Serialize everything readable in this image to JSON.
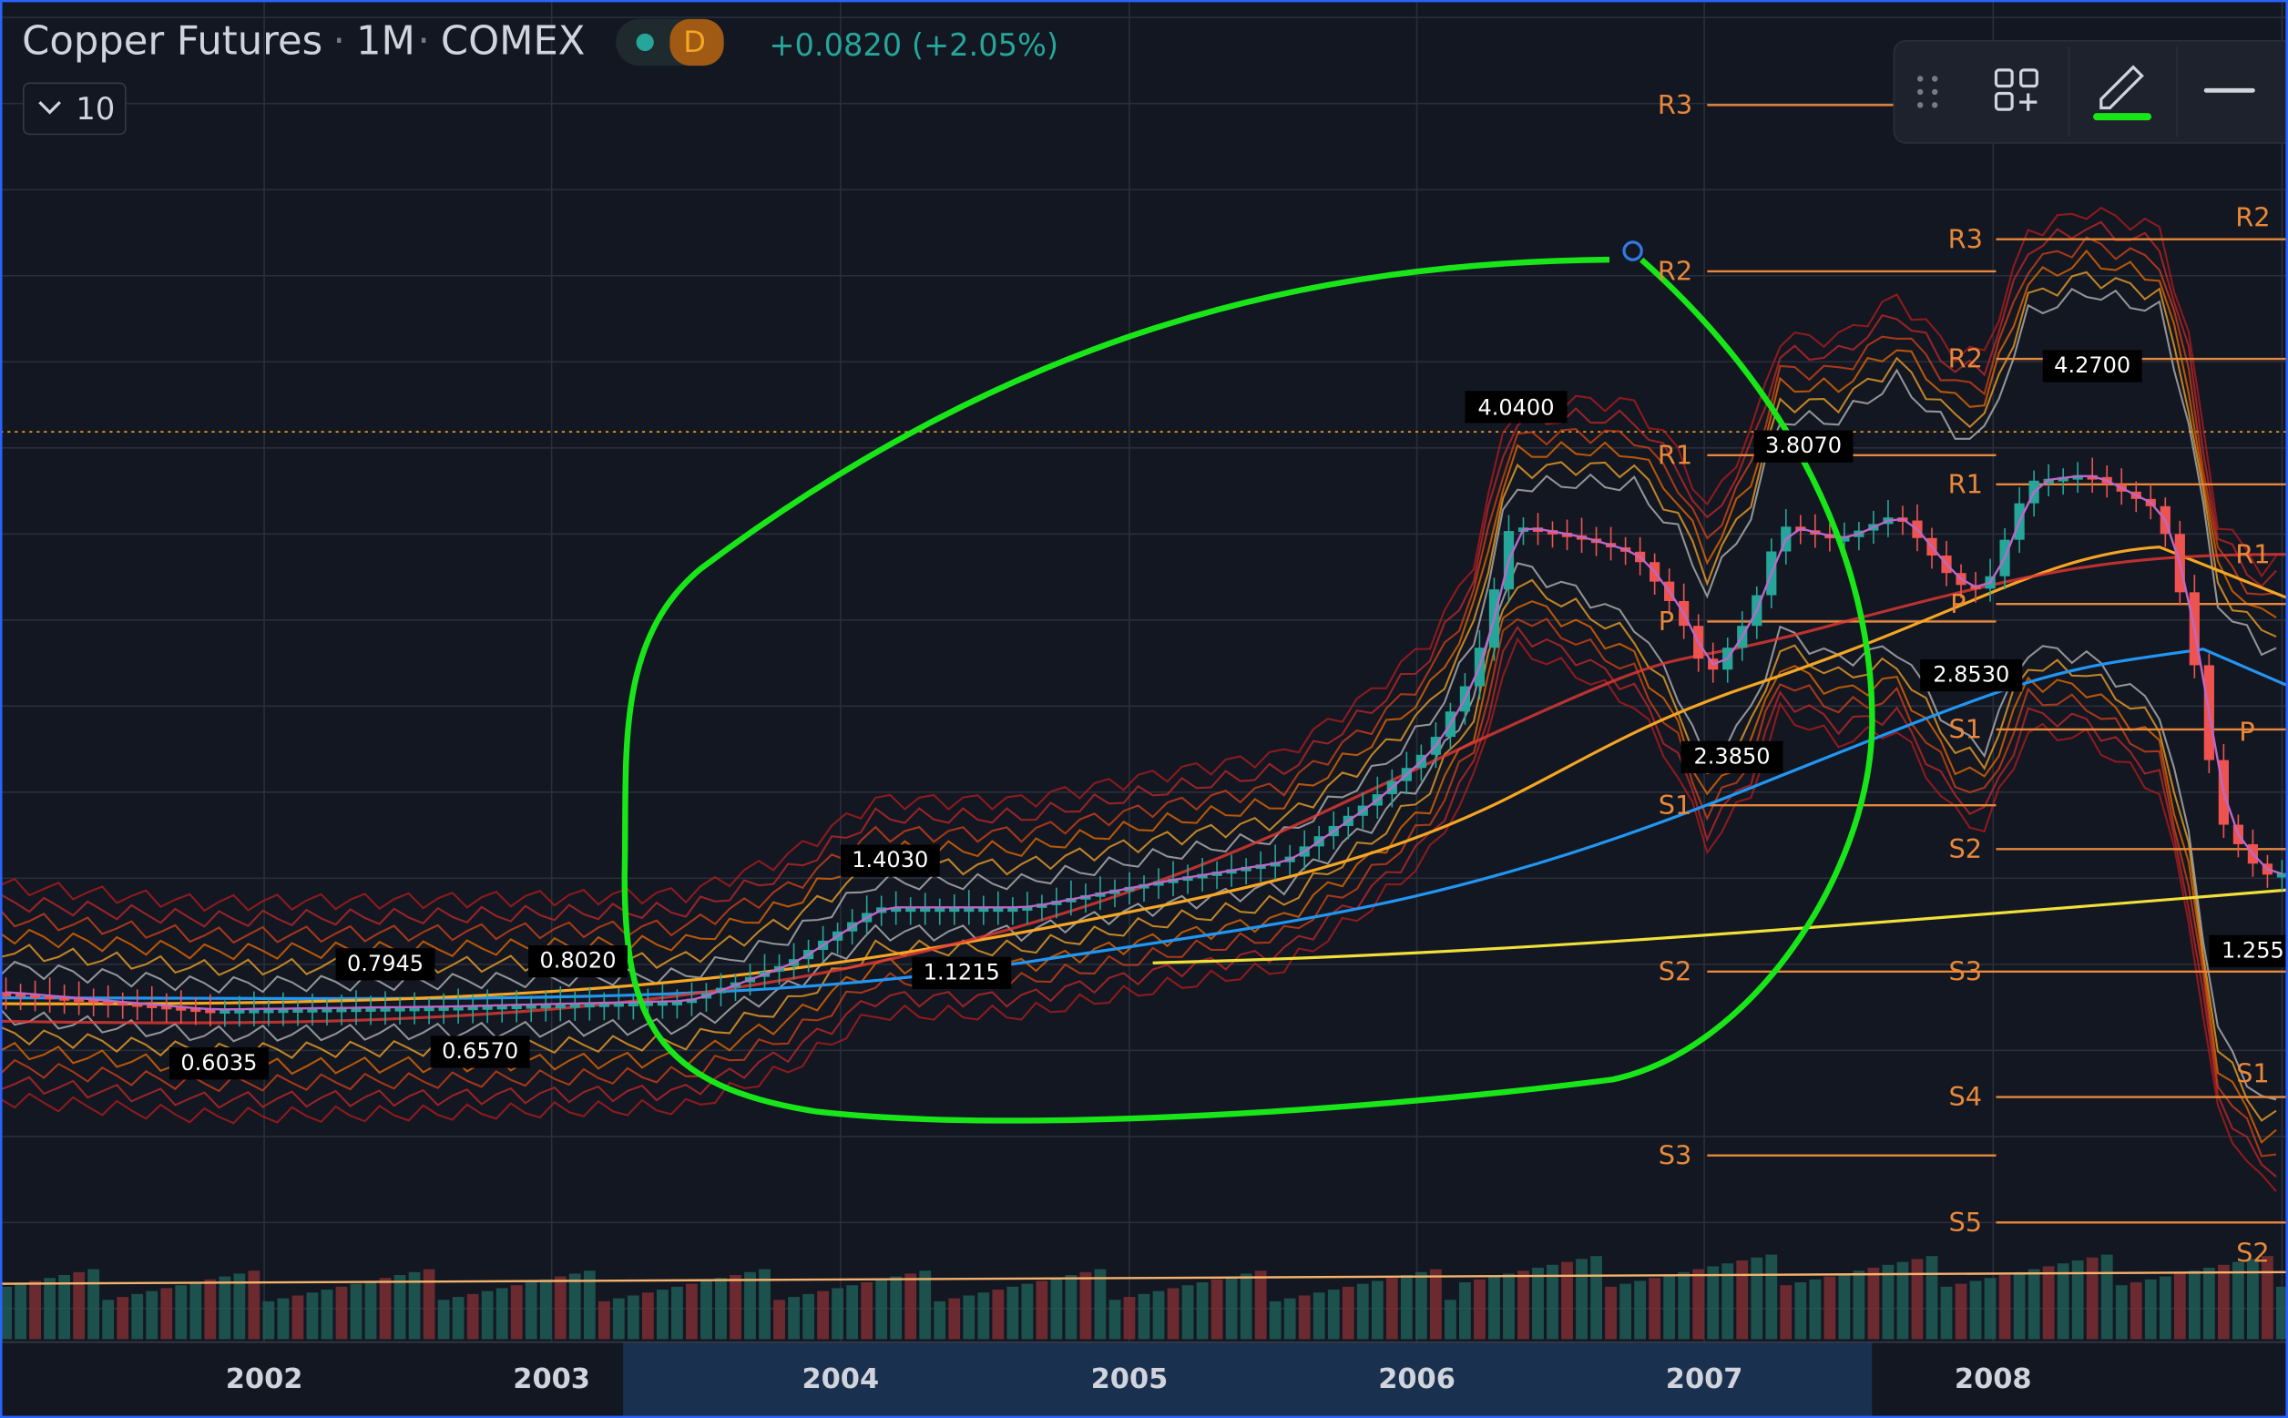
{
  "header": {
    "title": "Copper Futures",
    "separator": "·",
    "interval": "1M",
    "exchange": "COMEX",
    "badge": "D",
    "change": "+0.0820 (+2.05%)",
    "indicator_count": "10"
  },
  "price_labels": [
    "4.0400",
    "3.8070",
    "4.2700",
    "2.3850",
    "2.8530",
    "1.4030",
    "1.1215",
    "0.7945",
    "0.8020",
    "0.6035",
    "0.6570",
    "1.255"
  ],
  "pivots": {
    "set_2007": [
      "R3",
      "R2",
      "R1",
      "P",
      "S1",
      "S2",
      "S3"
    ],
    "set_2008": [
      "R3",
      "R2",
      "R1",
      "P",
      "S1",
      "S2",
      "S3",
      "S4",
      "S5"
    ],
    "set_2009": [
      "R2",
      "R1",
      "P",
      "S1",
      "S2"
    ]
  },
  "time_axis": [
    "2002",
    "2003",
    "2004",
    "2005",
    "2006",
    "2007",
    "2008"
  ]
}
